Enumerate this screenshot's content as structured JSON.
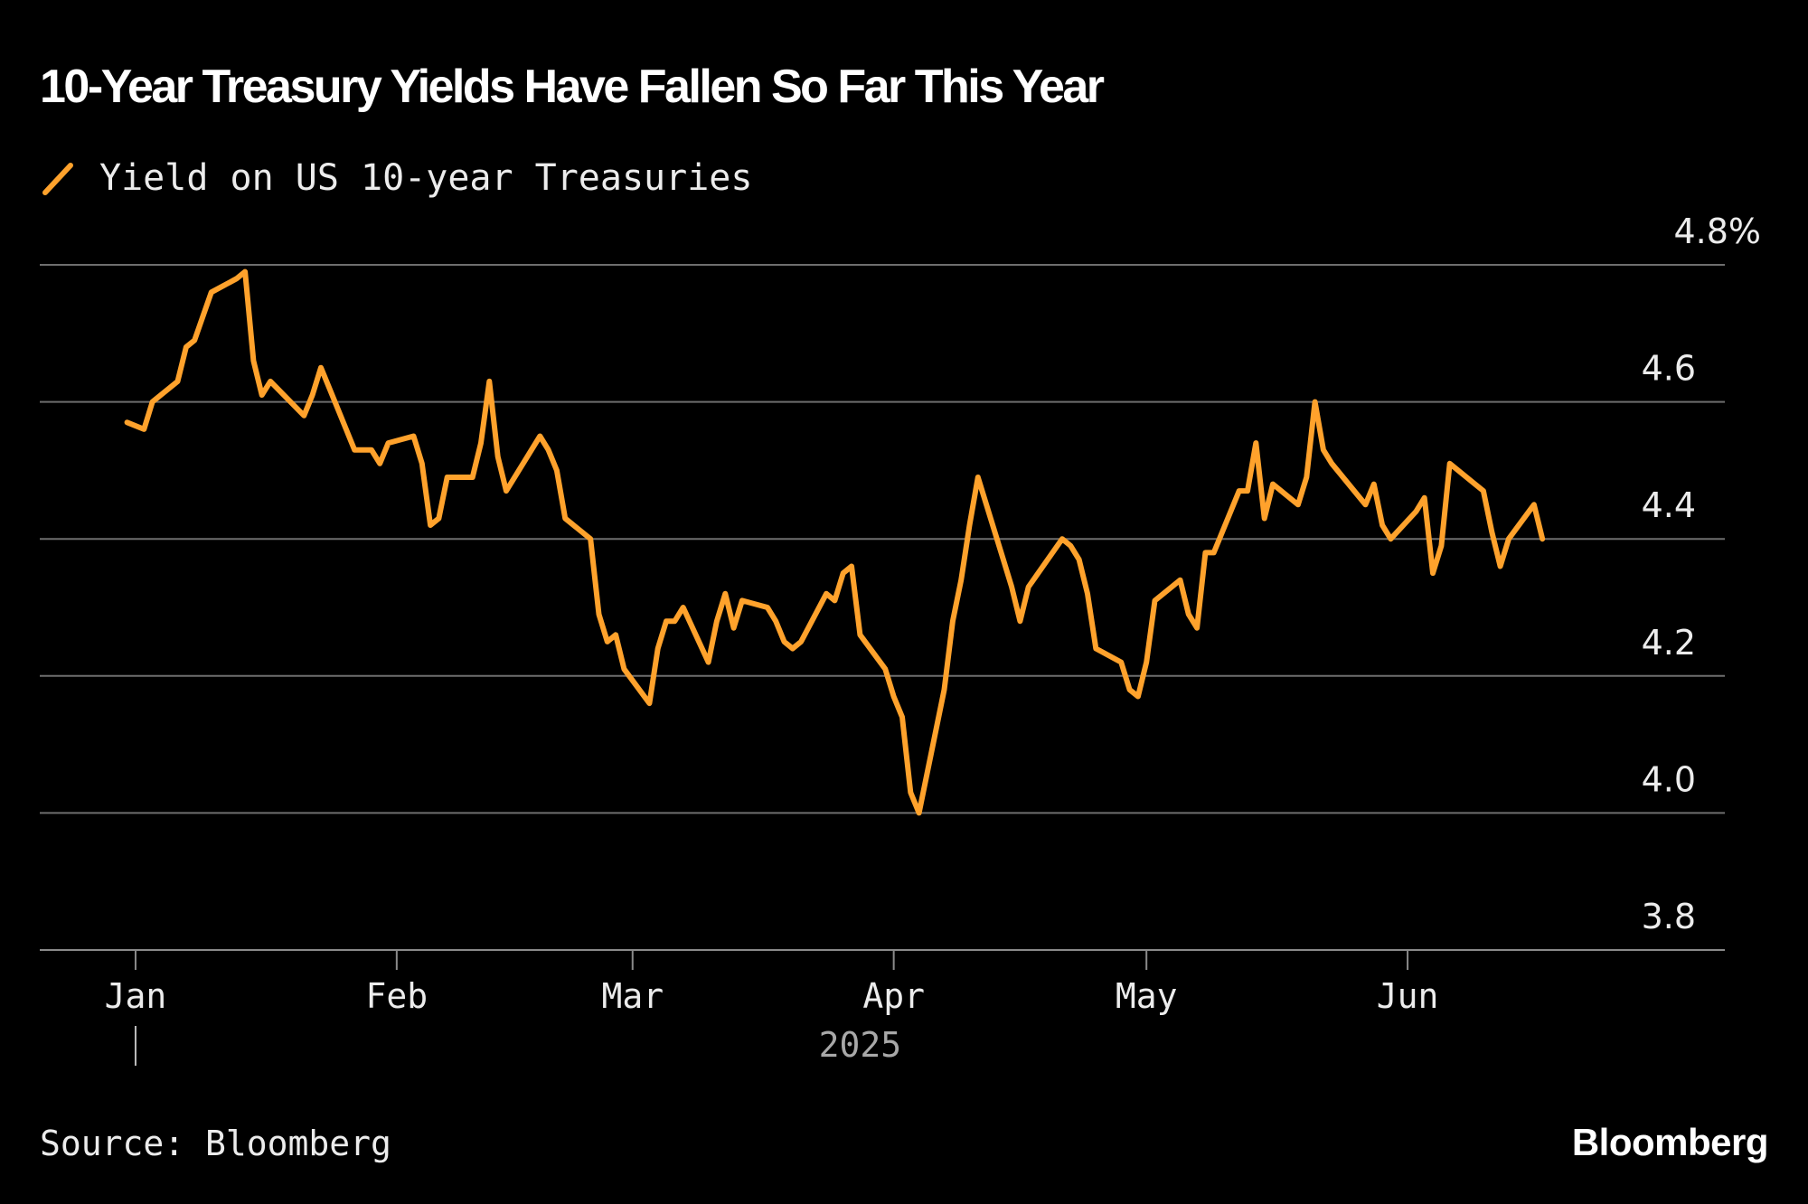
{
  "title": "10-Year Treasury Yields Have Fallen So Far This Year",
  "source": "Source: Bloomberg",
  "brand": "Bloomberg",
  "colors": {
    "background": "#000000",
    "series": "#ffa22c",
    "grid": "#6e6e6e",
    "text": "#ececec"
  },
  "chart_data": {
    "type": "line",
    "title": "10-Year Treasury Yields Have Fallen So Far This Year",
    "xlabel": "2025",
    "ylabel": "",
    "ylim": [
      3.8,
      4.8
    ],
    "y_ticks": [
      {
        "value": 4.8,
        "label": "4.8%"
      },
      {
        "value": 4.6,
        "label": "4.6"
      },
      {
        "value": 4.4,
        "label": "4.4"
      },
      {
        "value": 4.2,
        "label": "4.2"
      },
      {
        "value": 4.0,
        "label": "4.0"
      },
      {
        "value": 3.8,
        "label": "3.8"
      }
    ],
    "x_ticks": [
      {
        "date": "2025-01-01",
        "label": "Jan"
      },
      {
        "date": "2025-02-01",
        "label": "Feb"
      },
      {
        "date": "2025-03-01",
        "label": "Mar"
      },
      {
        "date": "2025-04-01",
        "label": "Apr"
      },
      {
        "date": "2025-05-01",
        "label": "May"
      },
      {
        "date": "2025-06-01",
        "label": "Jun"
      }
    ],
    "xlim": [
      "2024-12-29",
      "2025-06-29"
    ],
    "grid": true,
    "legend_position": "top-left",
    "series": [
      {
        "name": "Yield on US 10-year Treasuries",
        "color": "#ffa22c",
        "points": [
          [
            "2024-12-31",
            4.57
          ],
          [
            "2025-01-02",
            4.56
          ],
          [
            "2025-01-03",
            4.6
          ],
          [
            "2025-01-06",
            4.63
          ],
          [
            "2025-01-07",
            4.68
          ],
          [
            "2025-01-08",
            4.69
          ],
          [
            "2025-01-10",
            4.76
          ],
          [
            "2025-01-13",
            4.78
          ],
          [
            "2025-01-14",
            4.79
          ],
          [
            "2025-01-15",
            4.66
          ],
          [
            "2025-01-16",
            4.61
          ],
          [
            "2025-01-17",
            4.63
          ],
          [
            "2025-01-21",
            4.58
          ],
          [
            "2025-01-22",
            4.61
          ],
          [
            "2025-01-23",
            4.65
          ],
          [
            "2025-01-24",
            4.62
          ],
          [
            "2025-01-27",
            4.53
          ],
          [
            "2025-01-28",
            4.53
          ],
          [
            "2025-01-29",
            4.53
          ],
          [
            "2025-01-30",
            4.51
          ],
          [
            "2025-01-31",
            4.54
          ],
          [
            "2025-02-03",
            4.55
          ],
          [
            "2025-02-04",
            4.51
          ],
          [
            "2025-02-05",
            4.42
          ],
          [
            "2025-02-06",
            4.43
          ],
          [
            "2025-02-07",
            4.49
          ],
          [
            "2025-02-10",
            4.49
          ],
          [
            "2025-02-11",
            4.54
          ],
          [
            "2025-02-12",
            4.63
          ],
          [
            "2025-02-13",
            4.52
          ],
          [
            "2025-02-14",
            4.47
          ],
          [
            "2025-02-18",
            4.55
          ],
          [
            "2025-02-19",
            4.53
          ],
          [
            "2025-02-20",
            4.5
          ],
          [
            "2025-02-21",
            4.43
          ],
          [
            "2025-02-24",
            4.4
          ],
          [
            "2025-02-25",
            4.29
          ],
          [
            "2025-02-26",
            4.25
          ],
          [
            "2025-02-27",
            4.26
          ],
          [
            "2025-02-28",
            4.21
          ],
          [
            "2025-03-03",
            4.16
          ],
          [
            "2025-03-04",
            4.24
          ],
          [
            "2025-03-05",
            4.28
          ],
          [
            "2025-03-06",
            4.28
          ],
          [
            "2025-03-07",
            4.3
          ],
          [
            "2025-03-10",
            4.22
          ],
          [
            "2025-03-11",
            4.28
          ],
          [
            "2025-03-12",
            4.32
          ],
          [
            "2025-03-13",
            4.27
          ],
          [
            "2025-03-14",
            4.31
          ],
          [
            "2025-03-17",
            4.3
          ],
          [
            "2025-03-18",
            4.28
          ],
          [
            "2025-03-19",
            4.25
          ],
          [
            "2025-03-20",
            4.24
          ],
          [
            "2025-03-21",
            4.25
          ],
          [
            "2025-03-24",
            4.32
          ],
          [
            "2025-03-25",
            4.31
          ],
          [
            "2025-03-26",
            4.35
          ],
          [
            "2025-03-27",
            4.36
          ],
          [
            "2025-03-28",
            4.26
          ],
          [
            "2025-03-31",
            4.21
          ],
          [
            "2025-04-01",
            4.17
          ],
          [
            "2025-04-02",
            4.14
          ],
          [
            "2025-04-03",
            4.03
          ],
          [
            "2025-04-04",
            4.0
          ],
          [
            "2025-04-07",
            4.18
          ],
          [
            "2025-04-08",
            4.28
          ],
          [
            "2025-04-09",
            4.34
          ],
          [
            "2025-04-10",
            4.42
          ],
          [
            "2025-04-11",
            4.49
          ],
          [
            "2025-04-14",
            4.37
          ],
          [
            "2025-04-15",
            4.33
          ],
          [
            "2025-04-16",
            4.28
          ],
          [
            "2025-04-17",
            4.33
          ],
          [
            "2025-04-21",
            4.4
          ],
          [
            "2025-04-22",
            4.39
          ],
          [
            "2025-04-23",
            4.37
          ],
          [
            "2025-04-24",
            4.32
          ],
          [
            "2025-04-25",
            4.24
          ],
          [
            "2025-04-28",
            4.22
          ],
          [
            "2025-04-29",
            4.18
          ],
          [
            "2025-04-30",
            4.17
          ],
          [
            "2025-05-01",
            4.22
          ],
          [
            "2025-05-02",
            4.31
          ],
          [
            "2025-05-05",
            4.34
          ],
          [
            "2025-05-06",
            4.29
          ],
          [
            "2025-05-07",
            4.27
          ],
          [
            "2025-05-08",
            4.38
          ],
          [
            "2025-05-09",
            4.38
          ],
          [
            "2025-05-12",
            4.47
          ],
          [
            "2025-05-13",
            4.47
          ],
          [
            "2025-05-14",
            4.54
          ],
          [
            "2025-05-15",
            4.43
          ],
          [
            "2025-05-16",
            4.48
          ],
          [
            "2025-05-19",
            4.45
          ],
          [
            "2025-05-20",
            4.49
          ],
          [
            "2025-05-21",
            4.6
          ],
          [
            "2025-05-22",
            4.53
          ],
          [
            "2025-05-23",
            4.51
          ],
          [
            "2025-05-27",
            4.45
          ],
          [
            "2025-05-28",
            4.48
          ],
          [
            "2025-05-29",
            4.42
          ],
          [
            "2025-05-30",
            4.4
          ],
          [
            "2025-06-02",
            4.44
          ],
          [
            "2025-06-03",
            4.46
          ],
          [
            "2025-06-04",
            4.35
          ],
          [
            "2025-06-05",
            4.39
          ],
          [
            "2025-06-06",
            4.51
          ],
          [
            "2025-06-09",
            4.48
          ],
          [
            "2025-06-10",
            4.47
          ],
          [
            "2025-06-11",
            4.41
          ],
          [
            "2025-06-12",
            4.36
          ],
          [
            "2025-06-13",
            4.4
          ],
          [
            "2025-06-16",
            4.45
          ],
          [
            "2025-06-17",
            4.4
          ]
        ]
      }
    ]
  }
}
